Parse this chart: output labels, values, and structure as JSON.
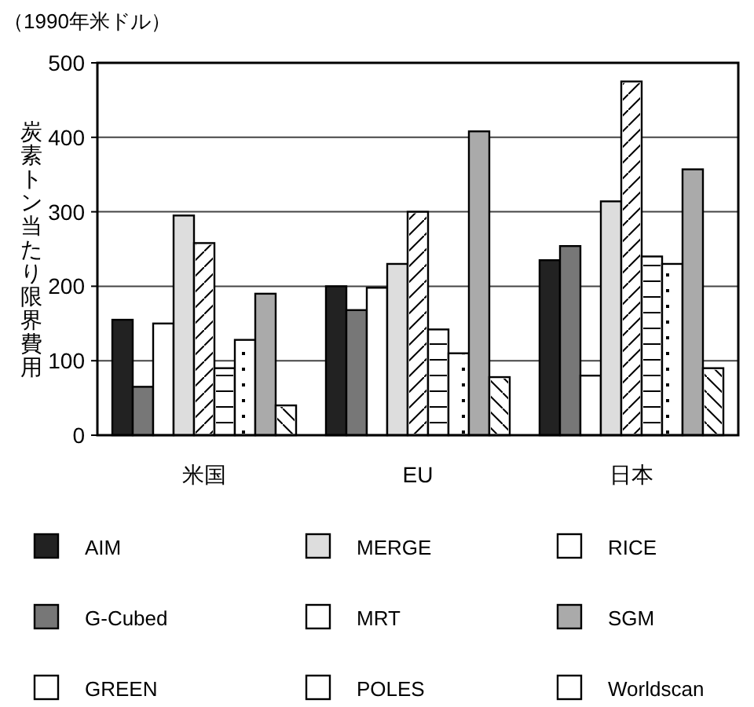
{
  "chart_data": {
    "type": "bar",
    "ylabel": "炭素トン当たり限界費用",
    "annotations": [
      "（1990年米ドル）"
    ],
    "categories": [
      "米国",
      "EU",
      "日本"
    ],
    "ylim": [
      0,
      500
    ],
    "yticks": [
      0,
      100,
      200,
      300,
      400,
      500
    ],
    "grid": "y",
    "legend": "bottom",
    "series": [
      {
        "name": "AIM",
        "color": "#222222",
        "values": [
          155,
          200,
          235
        ]
      },
      {
        "name": "G-Cubed",
        "color": "#777777",
        "values": [
          65,
          168,
          254
        ]
      },
      {
        "name": "GREEN",
        "color": "#ffffff",
        "values": [
          150,
          198,
          80
        ]
      },
      {
        "name": "MERGE",
        "color": "#dddddd",
        "values": [
          295,
          230,
          314
        ]
      },
      {
        "name": "MRT",
        "color": "#ffffff",
        "values": [
          258,
          300,
          475
        ]
      },
      {
        "name": "POLES",
        "color": "#ffffff",
        "values": [
          90,
          142,
          240
        ]
      },
      {
        "name": "RICE",
        "color": "#ffffff",
        "values": [
          128,
          110,
          230
        ]
      },
      {
        "name": "SGM",
        "color": "#aaaaaa",
        "values": [
          190,
          408,
          357
        ]
      },
      {
        "name": "Worldscan",
        "color": "#ffffff",
        "values": [
          40,
          78,
          90
        ]
      }
    ]
  }
}
